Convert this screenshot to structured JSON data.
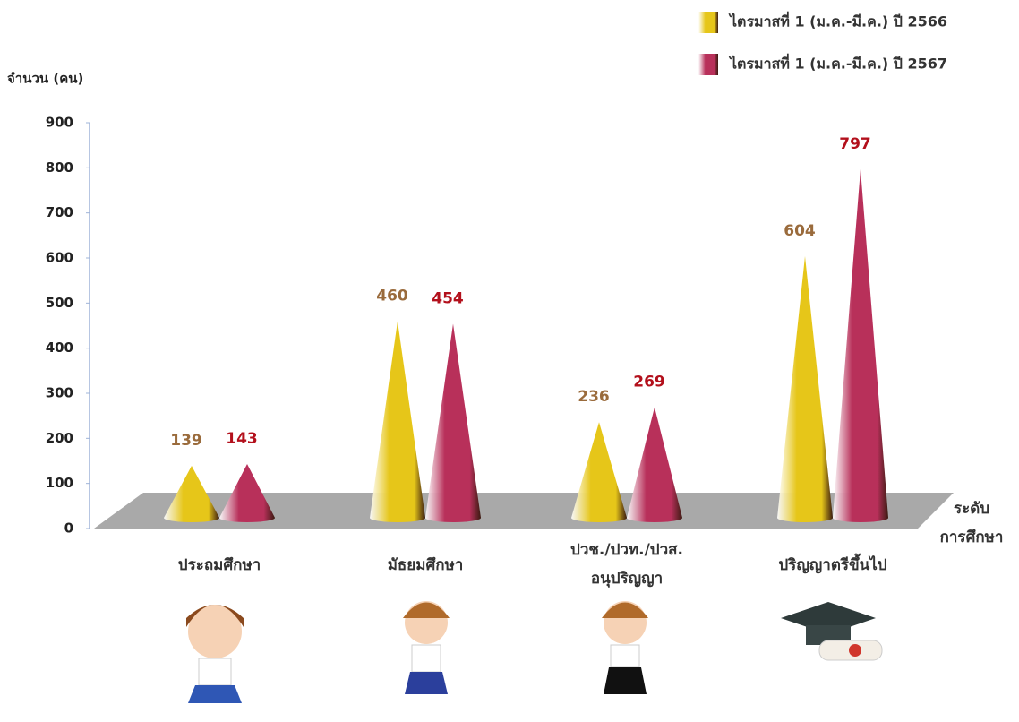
{
  "chart_data": {
    "type": "cone",
    "y_label": "จำนวน (คน)",
    "x_label": "ระดับ\nการศึกษา",
    "categories": [
      "ประถมศึกษา",
      "มัธยมศึกษา",
      "ปวช./ปวท./ปวส.\nอนุปริญญา",
      "ปริญญาตรีขึ้นไป"
    ],
    "series": [
      {
        "name": "ไตรมาสที่ 1 (ม.ค.-มี.ค.) ปี 2566",
        "color": "#e6c619",
        "label_color": "#9a6b3c",
        "values": [
          139,
          460,
          236,
          604
        ]
      },
      {
        "name": "ไตรมาสที่ 1 (ม.ค.-มี.ค.) ปี 2567",
        "color": "#b8305a",
        "label_color": "#b3101c",
        "values": [
          143,
          454,
          269,
          797
        ]
      }
    ],
    "ylim": [
      0,
      900
    ],
    "yticks": [
      0,
      100,
      200,
      300,
      400,
      500,
      600,
      700,
      800,
      900
    ],
    "legend": "top-right"
  }
}
